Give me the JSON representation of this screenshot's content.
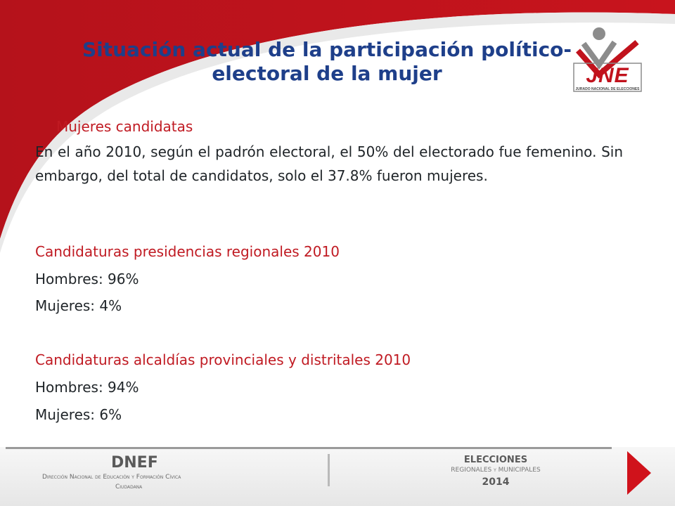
{
  "slide": {
    "title_line1": "Situación actual de la participación político-",
    "title_line2": "electoral de la mujer",
    "section_heading": "Mujeres candidatas",
    "paragraph": "En el año 2010, según el padrón electoral, el 50% del electorado fue femenino. Sin embargo, del total de candidatos, solo el 37.8% fueron mujeres.",
    "block1": {
      "heading": "Candidaturas presidencias regionales 2010",
      "men": "Hombres: 96%",
      "women": "Mujeres: 4%"
    },
    "block2": {
      "heading": "Candidaturas alcaldías provinciales  y distritales 2010",
      "men": "Hombres: 94%",
      "women": "Mujeres: 6%"
    }
  },
  "logo": {
    "text": "JNE",
    "subtitle": "JURADO NACIONAL DE ELECCIONES"
  },
  "footer": {
    "left_title": "DNEF",
    "left_subtitle_line1": "Dirección Nacional de Educación y Formación Cívica",
    "left_subtitle_line2": "Ciudadana",
    "right_title": "ELECCIONES",
    "right_subtitle": "REGIONALES y MUNICIPALES",
    "right_year": "2014"
  },
  "colors": {
    "accent_red": "#c1121c",
    "title_blue": "#1e3f8a",
    "body_text": "#1f2428"
  }
}
